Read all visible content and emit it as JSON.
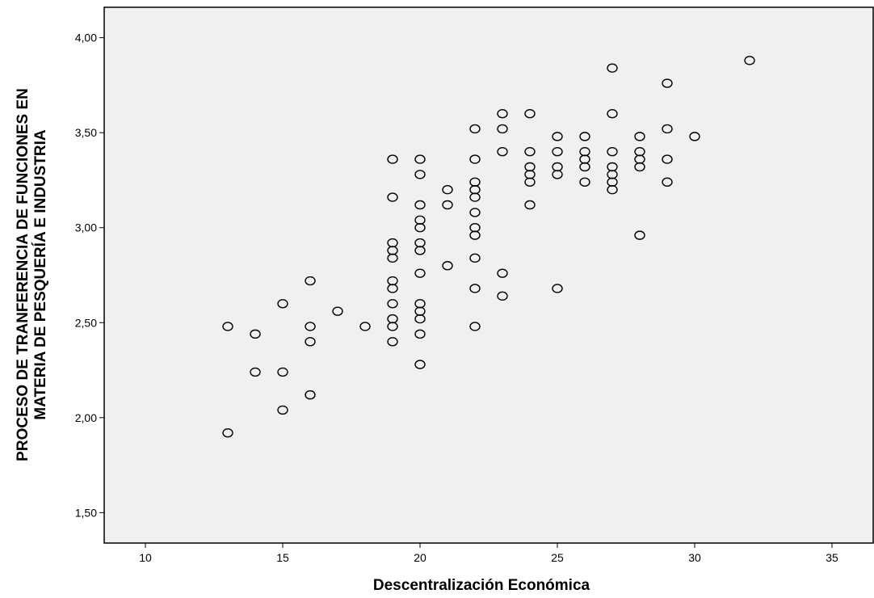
{
  "chart_data": {
    "type": "scatter",
    "xlabel": "Descentralización Económica",
    "ylabel_lines": [
      "PROCESO DE TRANFERENCIA DE FUNCIONES EN",
      "MATERIA DE PESQUERÍA E INDUSTRIA"
    ],
    "xlim": [
      8.5,
      36.5
    ],
    "ylim": [
      1.34,
      4.16
    ],
    "x_ticks": [
      10,
      15,
      20,
      25,
      30,
      35
    ],
    "x_tick_labels": [
      "10",
      "15",
      "20",
      "25",
      "30",
      "35"
    ],
    "y_ticks": [
      1.5,
      2.0,
      2.5,
      3.0,
      3.5,
      4.0
    ],
    "y_tick_labels": [
      "1,50",
      "2,00",
      "2,50",
      "3,00",
      "3,50",
      "4,00"
    ],
    "grid": false,
    "background": "#f0f0f0",
    "marker": "hollow-circle",
    "points": [
      [
        13,
        2.48
      ],
      [
        13,
        1.92
      ],
      [
        14,
        2.44
      ],
      [
        14,
        2.24
      ],
      [
        15,
        2.6
      ],
      [
        15,
        2.24
      ],
      [
        15,
        2.04
      ],
      [
        16,
        2.72
      ],
      [
        16,
        2.48
      ],
      [
        16,
        2.4
      ],
      [
        16,
        2.12
      ],
      [
        17,
        2.56
      ],
      [
        18,
        2.48
      ],
      [
        19,
        3.36
      ],
      [
        19,
        3.16
      ],
      [
        19,
        2.92
      ],
      [
        19,
        2.88
      ],
      [
        19,
        2.84
      ],
      [
        19,
        2.72
      ],
      [
        19,
        2.68
      ],
      [
        19,
        2.6
      ],
      [
        19,
        2.52
      ],
      [
        19,
        2.48
      ],
      [
        19,
        2.4
      ],
      [
        20,
        3.36
      ],
      [
        20,
        3.28
      ],
      [
        20,
        3.12
      ],
      [
        20,
        3.04
      ],
      [
        20,
        3.0
      ],
      [
        20,
        2.92
      ],
      [
        20,
        2.88
      ],
      [
        20,
        2.76
      ],
      [
        20,
        2.6
      ],
      [
        20,
        2.56
      ],
      [
        20,
        2.52
      ],
      [
        20,
        2.44
      ],
      [
        20,
        2.28
      ],
      [
        21,
        3.2
      ],
      [
        21,
        3.12
      ],
      [
        21,
        2.8
      ],
      [
        22,
        3.52
      ],
      [
        22,
        3.36
      ],
      [
        22,
        3.24
      ],
      [
        22,
        3.2
      ],
      [
        22,
        3.16
      ],
      [
        22,
        3.08
      ],
      [
        22,
        3.0
      ],
      [
        22,
        2.96
      ],
      [
        22,
        2.84
      ],
      [
        22,
        2.68
      ],
      [
        22,
        2.48
      ],
      [
        23,
        3.6
      ],
      [
        23,
        3.52
      ],
      [
        23,
        3.4
      ],
      [
        23,
        2.76
      ],
      [
        23,
        2.64
      ],
      [
        24,
        3.6
      ],
      [
        24,
        3.4
      ],
      [
        24,
        3.32
      ],
      [
        24,
        3.28
      ],
      [
        24,
        3.24
      ],
      [
        24,
        3.12
      ],
      [
        25,
        3.48
      ],
      [
        25,
        3.4
      ],
      [
        25,
        3.32
      ],
      [
        25,
        3.28
      ],
      [
        25,
        2.68
      ],
      [
        26,
        3.48
      ],
      [
        26,
        3.4
      ],
      [
        26,
        3.36
      ],
      [
        26,
        3.32
      ],
      [
        26,
        3.24
      ],
      [
        27,
        3.84
      ],
      [
        27,
        3.6
      ],
      [
        27,
        3.4
      ],
      [
        27,
        3.32
      ],
      [
        27,
        3.28
      ],
      [
        27,
        3.24
      ],
      [
        27,
        3.2
      ],
      [
        28,
        3.48
      ],
      [
        28,
        3.4
      ],
      [
        28,
        3.36
      ],
      [
        28,
        3.32
      ],
      [
        28,
        2.96
      ],
      [
        29,
        3.76
      ],
      [
        29,
        3.52
      ],
      [
        29,
        3.36
      ],
      [
        29,
        3.24
      ],
      [
        30,
        3.48
      ],
      [
        32,
        3.88
      ]
    ]
  }
}
